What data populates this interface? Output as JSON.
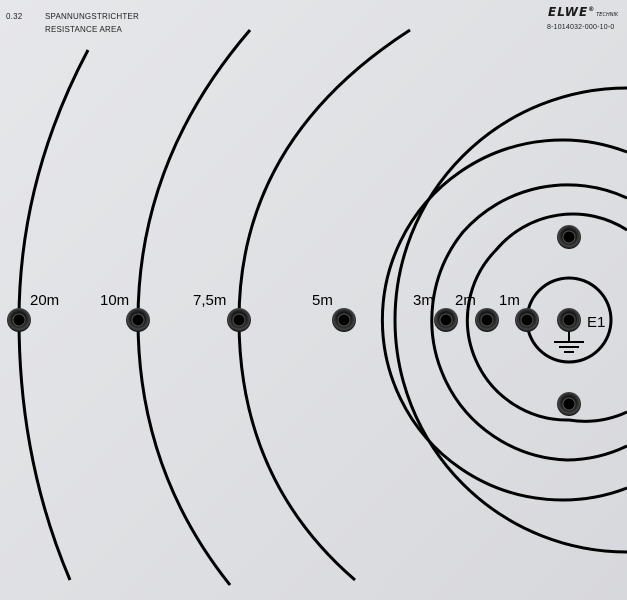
{
  "header": {
    "code": "0.32",
    "title_de": "SPANNUNGSTRICHTER",
    "title_en": "RESISTANCE AREA",
    "brand": "ELWE",
    "brand_sub": "TECHNIK",
    "part_number": "8-1014032-000-10-0"
  },
  "labels": {
    "d20": "20m",
    "d10": "10m",
    "d75": "7,5m",
    "d5": "5m",
    "d3": "3m",
    "d2": "2m",
    "d1": "1m",
    "electrode": "E1"
  },
  "colors": {
    "panel": "#e2e3e6",
    "ink": "#000000",
    "socket": "#111111"
  },
  "icons": [
    "ground-symbol-icon",
    "socket-icon"
  ]
}
